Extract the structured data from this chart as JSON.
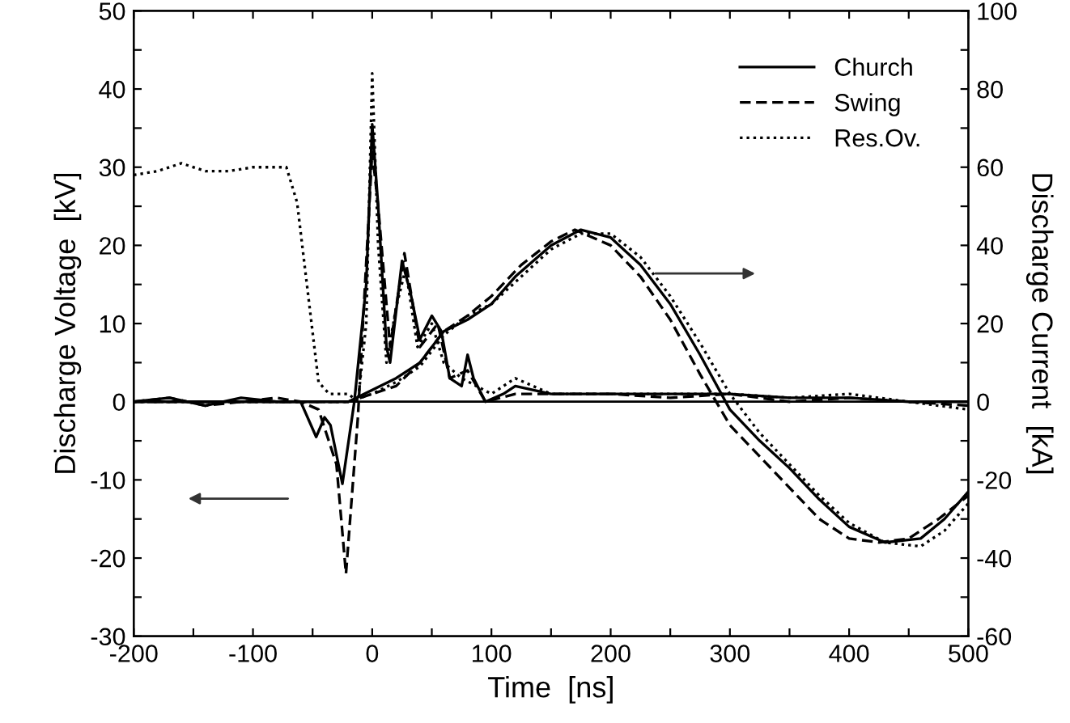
{
  "chart_data": {
    "type": "line",
    "xlabel": "Time  [ns]",
    "ylabel": "Discharge Voltage  [kV]",
    "y2label": "Discharge Current  [kA]",
    "xlim": [
      -200,
      500
    ],
    "xticks": [
      -200,
      {
        "value": -150,
        "label": null
      },
      -100,
      {
        "value": -50,
        "label": null
      },
      0,
      {
        "value": 50,
        "label": null
      },
      100,
      {
        "value": 150,
        "label": null
      },
      200,
      {
        "value": 250,
        "label": null
      },
      300,
      {
        "value": 350,
        "label": null
      },
      400,
      {
        "value": 450,
        "label": null
      },
      500
    ],
    "ylim": [
      -30,
      50
    ],
    "yticks": [
      -30,
      {
        "value": -25,
        "label": null
      },
      -20,
      {
        "value": -15,
        "label": null
      },
      -10,
      {
        "value": -5,
        "label": null
      },
      0,
      {
        "value": 5,
        "label": null
      },
      10,
      {
        "value": 15,
        "label": null
      },
      20,
      {
        "value": 25,
        "label": null
      },
      30,
      {
        "value": 35,
        "label": null
      },
      40,
      {
        "value": 45,
        "label": null
      },
      50
    ],
    "y2lim": [
      -60,
      100
    ],
    "y2ticks": [
      -60,
      {
        "value": -50,
        "label": null
      },
      -40,
      {
        "value": -30,
        "label": null
      },
      -20,
      {
        "value": -10,
        "label": null
      },
      0,
      {
        "value": 10,
        "label": null
      },
      20,
      {
        "value": 30,
        "label": null
      },
      40,
      {
        "value": 50,
        "label": null
      },
      60,
      {
        "value": 70,
        "label": null
      },
      80,
      {
        "value": 90,
        "label": null
      },
      100
    ],
    "legend": "top right",
    "grid": false,
    "ref_lines": [
      {
        "axis": "y",
        "value": 0,
        "color": "#000000"
      }
    ],
    "series": [
      {
        "name": "Church",
        "color": "#000000",
        "line_style": "solid",
        "x": [
          -200,
          -170,
          -140,
          -110,
          -80,
          -60,
          -47,
          -40,
          -35,
          -25,
          -15,
          -5,
          0,
          5,
          12,
          15,
          25,
          32,
          40,
          50,
          58,
          65,
          75,
          80,
          85,
          95,
          110,
          120,
          150,
          200,
          250,
          300,
          350,
          400,
          450,
          500
        ],
        "values": [
          0,
          0.5,
          -0.5,
          0.5,
          0,
          0,
          -4.5,
          -2,
          -3,
          -10.5,
          0,
          15,
          35.5,
          25,
          7,
          5,
          18,
          14,
          8,
          11,
          9,
          3,
          2,
          6,
          3,
          0,
          1,
          2,
          1,
          1,
          1,
          1,
          0.5,
          0.5,
          0,
          0
        ]
      },
      {
        "name": "Swing",
        "color": "#000000",
        "line_style": "dashed",
        "x": [
          -200,
          -170,
          -140,
          -110,
          -80,
          -60,
          -45,
          -30,
          -22,
          -12,
          0,
          5,
          15,
          27,
          40,
          55,
          65,
          80,
          95,
          120,
          150,
          200,
          250,
          300,
          350,
          400,
          450,
          500
        ],
        "values": [
          0,
          0.5,
          -0.5,
          0,
          0.5,
          0,
          -1,
          -8,
          -22,
          -2,
          32,
          25,
          7,
          19,
          7,
          10,
          3,
          4,
          0,
          1,
          1,
          1,
          0.5,
          1,
          0,
          0.5,
          0,
          -0.5
        ]
      },
      {
        "name": "Res.Ov.",
        "color": "#000000",
        "line_style": "dotted",
        "x": [
          -200,
          -180,
          -160,
          -140,
          -120,
          -100,
          -85,
          -72,
          -63,
          -54,
          -45,
          -36,
          -20,
          -12,
          -5,
          0,
          5,
          12,
          20,
          28,
          38,
          50,
          60,
          75,
          100,
          120,
          150,
          200,
          250,
          300,
          350,
          400,
          450,
          500
        ],
        "values": [
          29,
          29.5,
          30.5,
          29.5,
          29.5,
          30,
          30,
          30,
          25.5,
          14,
          2.5,
          1,
          1,
          0,
          10,
          42,
          20,
          5,
          12,
          17,
          7,
          10,
          5,
          3,
          1,
          3,
          1,
          1,
          1,
          1,
          0.5,
          1,
          0,
          -1
        ]
      },
      {
        "color": "#000000",
        "line_style": "solid",
        "axis": "y2",
        "x": [
          -200,
          -20,
          0,
          20,
          40,
          60,
          80,
          100,
          120,
          150,
          175,
          200,
          225,
          250,
          275,
          300,
          325,
          350,
          375,
          400,
          430,
          460,
          480,
          500
        ],
        "values": [
          0,
          0,
          3,
          6,
          10,
          18,
          21,
          25,
          32,
          40,
          44,
          42,
          35,
          25,
          12,
          -2,
          -10,
          -17,
          -25,
          -32,
          -36,
          -35,
          -30,
          -23
        ]
      },
      {
        "color": "#000000",
        "line_style": "dashed",
        "axis": "y2",
        "x": [
          -200,
          -20,
          0,
          20,
          40,
          60,
          80,
          100,
          125,
          150,
          170,
          200,
          225,
          250,
          275,
          300,
          325,
          350,
          375,
          400,
          425,
          450,
          475,
          500
        ],
        "values": [
          0,
          0,
          2,
          4,
          10,
          18,
          22,
          27,
          35,
          41,
          44,
          40,
          32,
          21,
          7,
          -6,
          -14,
          -22,
          -30,
          -35,
          -36,
          -35,
          -30,
          -24
        ]
      },
      {
        "color": "#000000",
        "line_style": "dotted",
        "axis": "y2",
        "x": [
          -200,
          -20,
          0,
          20,
          40,
          60,
          80,
          100,
          125,
          150,
          175,
          200,
          225,
          250,
          275,
          300,
          325,
          350,
          375,
          400,
          430,
          460,
          480,
          500
        ],
        "values": [
          0,
          0,
          2,
          5,
          9,
          17,
          22,
          25,
          32,
          39,
          43,
          43,
          37,
          27,
          15,
          2,
          -8,
          -16,
          -24,
          -31,
          -36,
          -37,
          -33,
          -26
        ]
      }
    ]
  }
}
